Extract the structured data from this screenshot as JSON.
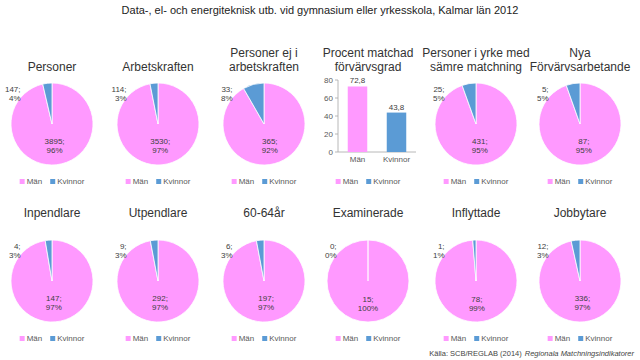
{
  "header": {
    "title": "Data-, el- och energiteknisk utb. vid gymnasium eller yrkesskola, Kalmar län 2012"
  },
  "footer": {
    "source": "Källa: SCB/REGLAB (2014)",
    "source_title": "Regionala Matchningsindikatorer"
  },
  "chart_data": [
    {
      "type": "pie",
      "title": "Personer",
      "categories": [
        "Män",
        "Kvinnor"
      ],
      "values": [
        3895,
        147
      ],
      "value_labels": [
        "3895; 96%",
        "147; 4%"
      ],
      "colors": [
        "#ff99ff",
        "#5b9bd5"
      ],
      "data_labels": true,
      "legend": "bottom"
    },
    {
      "type": "pie",
      "title": "Arbetskraften",
      "categories": [
        "Män",
        "Kvinnor"
      ],
      "values": [
        3530,
        114
      ],
      "value_labels": [
        "3530; 97%",
        "114; 3%"
      ],
      "colors": [
        "#ff99ff",
        "#5b9bd5"
      ],
      "data_labels": true,
      "legend": "bottom"
    },
    {
      "type": "pie",
      "title": "Personer ej i arbetskraften",
      "categories": [
        "Män",
        "Kvinnor"
      ],
      "values": [
        365,
        33
      ],
      "value_labels": [
        "365; 92%",
        "33; 8%"
      ],
      "colors": [
        "#ff99ff",
        "#5b9bd5"
      ],
      "data_labels": true,
      "legend": "bottom"
    },
    {
      "type": "bar",
      "title": "Procent matchad förvärvsgrad",
      "categories": [
        "Män",
        "Kvinnor"
      ],
      "values": [
        72.8,
        43.8
      ],
      "value_labels": [
        "72,8",
        "43,8"
      ],
      "colors": [
        "#ff99ff",
        "#5b9bd5"
      ],
      "ylim": [
        0,
        80
      ],
      "yticks": [
        0,
        20,
        40,
        60,
        80
      ],
      "grid": false,
      "data_labels": true,
      "legend": "bottom"
    },
    {
      "type": "pie",
      "title": "Personer i yrke med sämre matchning",
      "categories": [
        "Män",
        "Kvinnor"
      ],
      "values": [
        431,
        25
      ],
      "value_labels": [
        "431; 95%",
        "25; 5%"
      ],
      "colors": [
        "#ff99ff",
        "#5b9bd5"
      ],
      "data_labels": true,
      "legend": "bottom"
    },
    {
      "type": "pie",
      "title": "Nya Förvärvsarbetande",
      "categories": [
        "Män",
        "Kvinnor"
      ],
      "values": [
        87,
        5
      ],
      "value_labels": [
        "87; 95%",
        "5; 5%"
      ],
      "colors": [
        "#ff99ff",
        "#5b9bd5"
      ],
      "data_labels": true,
      "legend": "bottom"
    },
    {
      "type": "pie",
      "title": "Inpendlare",
      "categories": [
        "Män",
        "Kvinnor"
      ],
      "values": [
        147,
        4
      ],
      "value_labels": [
        "147; 97%",
        "4; 3%"
      ],
      "colors": [
        "#ff99ff",
        "#5b9bd5"
      ],
      "data_labels": true,
      "legend": "bottom"
    },
    {
      "type": "pie",
      "title": "Utpendlare",
      "categories": [
        "Män",
        "Kvinnor"
      ],
      "values": [
        292,
        9
      ],
      "value_labels": [
        "292; 97%",
        "9; 3%"
      ],
      "colors": [
        "#ff99ff",
        "#5b9bd5"
      ],
      "data_labels": true,
      "legend": "bottom"
    },
    {
      "type": "pie",
      "title": "60-64år",
      "categories": [
        "Män",
        "Kvinnor"
      ],
      "values": [
        197,
        6
      ],
      "value_labels": [
        "197; 97%",
        "6; 3%"
      ],
      "colors": [
        "#ff99ff",
        "#5b9bd5"
      ],
      "data_labels": true,
      "legend": "bottom"
    },
    {
      "type": "pie",
      "title": "Examinerade",
      "categories": [
        "Män",
        "Kvinnor"
      ],
      "values": [
        15,
        0
      ],
      "value_labels": [
        "15; 100%",
        "0; 0%"
      ],
      "colors": [
        "#ff99ff",
        "#5b9bd5"
      ],
      "data_labels": true,
      "legend": "bottom"
    },
    {
      "type": "pie",
      "title": "Inflyttade",
      "categories": [
        "Män",
        "Kvinnor"
      ],
      "values": [
        78,
        1
      ],
      "value_labels": [
        "78; 99%",
        "1; 1%"
      ],
      "colors": [
        "#ff99ff",
        "#5b9bd5"
      ],
      "data_labels": true,
      "legend": "bottom"
    },
    {
      "type": "pie",
      "title": "Jobbytare",
      "categories": [
        "Män",
        "Kvinnor"
      ],
      "values": [
        336,
        12
      ],
      "value_labels": [
        "336; 97%",
        "12; 3%"
      ],
      "colors": [
        "#ff99ff",
        "#5b9bd5"
      ],
      "data_labels": true,
      "legend": "bottom"
    }
  ]
}
